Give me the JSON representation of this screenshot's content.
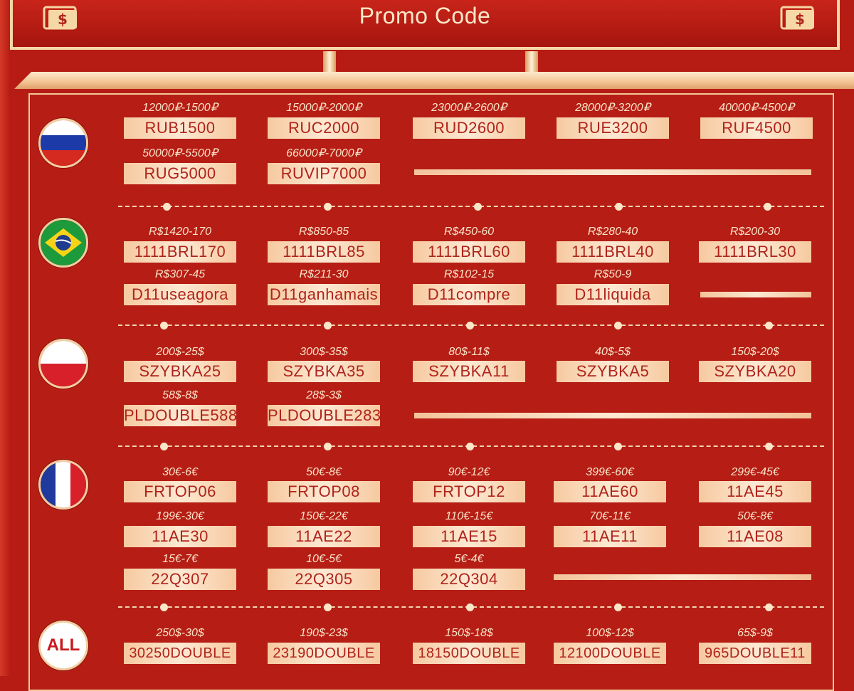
{
  "header": {
    "title": "Promo Code"
  },
  "sections": {
    "russia": {
      "flag": "russia-flag",
      "codes": [
        {
          "amount": "12000₽-1500₽",
          "code": "RUB1500"
        },
        {
          "amount": "15000₽-2000₽",
          "code": "RUC2000"
        },
        {
          "amount": "23000₽-2600₽",
          "code": "RUD2600"
        },
        {
          "amount": "28000₽-3200₽",
          "code": "RUE3200"
        },
        {
          "amount": "40000₽-4500₽",
          "code": "RUF4500"
        },
        {
          "amount": "50000₽-5500₽",
          "code": "RUG5000"
        },
        {
          "amount": "66000₽-7000₽",
          "code": "RUVIP7000"
        }
      ]
    },
    "brazil": {
      "flag": "brazil-flag",
      "codes": [
        {
          "amount": "R$1420-170",
          "code": "1111BRL170"
        },
        {
          "amount": "R$850-85",
          "code": "1111BRL85"
        },
        {
          "amount": "R$450-60",
          "code": "1111BRL60"
        },
        {
          "amount": "R$280-40",
          "code": "1111BRL40"
        },
        {
          "amount": "R$200-30",
          "code": "1111BRL30"
        },
        {
          "amount": "R$307-45",
          "code": "D11useagora"
        },
        {
          "amount": "R$211-30",
          "code": "D11ganhamais"
        },
        {
          "amount": "R$102-15",
          "code": "D11compre"
        },
        {
          "amount": "R$50-9",
          "code": "D11liquida"
        }
      ]
    },
    "poland": {
      "flag": "poland-flag",
      "codes": [
        {
          "amount": "200$-25$",
          "code": "SZYBKA25"
        },
        {
          "amount": "300$-35$",
          "code": "SZYBKA35"
        },
        {
          "amount": "80$-11$",
          "code": "SZYBKA11"
        },
        {
          "amount": "40$-5$",
          "code": "SZYBKA5"
        },
        {
          "amount": "150$-20$",
          "code": "SZYBKA20"
        },
        {
          "amount": "58$-8$",
          "code": "PLDOUBLE588"
        },
        {
          "amount": "28$-3$",
          "code": "PLDOUBLE283"
        }
      ]
    },
    "france": {
      "flag": "france-flag",
      "codes": [
        {
          "amount": "30€-6€",
          "code": "FRTOP06"
        },
        {
          "amount": "50€-8€",
          "code": "FRTOP08"
        },
        {
          "amount": "90€-12€",
          "code": "FRTOP12"
        },
        {
          "amount": "399€-60€",
          "code": "11AE60"
        },
        {
          "amount": "299€-45€",
          "code": "11AE45"
        },
        {
          "amount": "199€-30€",
          "code": "11AE30"
        },
        {
          "amount": "150€-22€",
          "code": "11AE22"
        },
        {
          "amount": "110€-15€",
          "code": "11AE15"
        },
        {
          "amount": "70€-11€",
          "code": "11AE11"
        },
        {
          "amount": "50€-8€",
          "code": "11AE08"
        },
        {
          "amount": "15€-7€",
          "code": "22Q307"
        },
        {
          "amount": "10€-5€",
          "code": "22Q305"
        },
        {
          "amount": "5€-4€",
          "code": "22Q304"
        }
      ]
    },
    "all": {
      "label": "ALL",
      "codes": [
        {
          "amount": "250$-30$",
          "code": "30250DOUBLE"
        },
        {
          "amount": "190$-23$",
          "code": "23190DOUBLE"
        },
        {
          "amount": "150$-18$",
          "code": "18150DOUBLE"
        },
        {
          "amount": "100$-12$",
          "code": "12100DOUBLE"
        },
        {
          "amount": "65$-9$",
          "code": "965DOUBLE11"
        }
      ]
    }
  },
  "colors": {
    "background": "#b71c14",
    "gold": "#f6d7a6",
    "code_text": "#b0231b"
  }
}
